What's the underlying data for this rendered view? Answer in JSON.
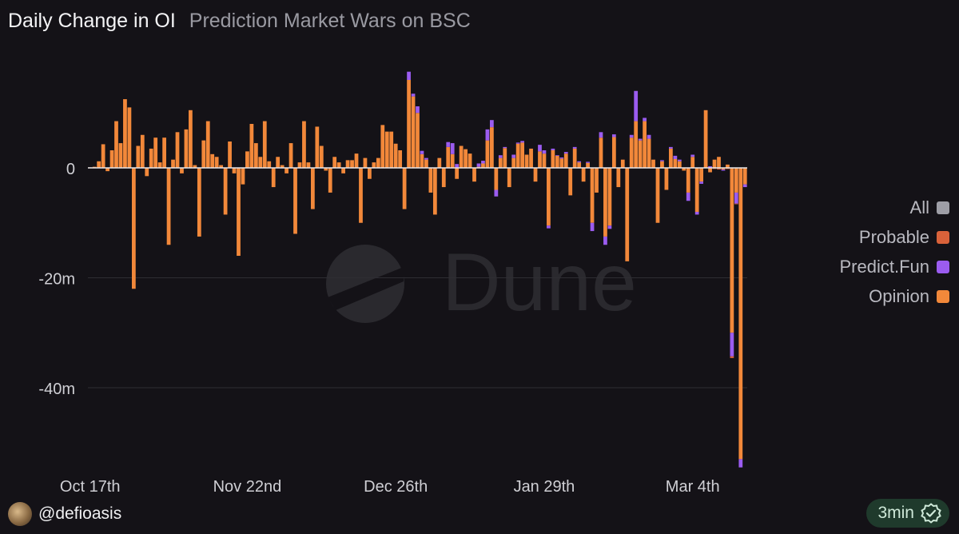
{
  "header": {
    "title": "Daily Change in OI",
    "subtitle": "Prediction Market Wars on BSC"
  },
  "footer": {
    "username": "@defioasis",
    "refresh_label": "3min",
    "avatar_icon": "avatar-icon",
    "refresh_icon": "verified-check-icon"
  },
  "colors": {
    "All": "#9e9ea6",
    "Probable": "#d9623a",
    "Predict.Fun": "#9b5cf0",
    "Opinion": "#f2883a",
    "grid": "#2e2d33",
    "axis_text": "#cfcfd4",
    "zero_line": "#e6e6ea"
  },
  "chart_data": {
    "type": "bar",
    "stacked": true,
    "title": "Daily Change in OI",
    "ylabel": "",
    "xlabel": "",
    "y_ticks": [
      0,
      -20,
      -40
    ],
    "y_tick_labels": [
      "0",
      "-20m",
      "-40m"
    ],
    "ylim": [
      -55,
      18
    ],
    "x_start": "2025-10-17",
    "x_ticks": [
      "2025-10-17",
      "2025-11-22",
      "2025-12-26",
      "2026-01-29",
      "2026-03-04"
    ],
    "x_tick_labels": [
      "Oct 17th",
      "Nov 22nd",
      "Dec 26th",
      "Jan 29th",
      "Mar 4th"
    ],
    "legend": [
      "All",
      "Probable",
      "Predict.Fun",
      "Opinion"
    ],
    "legend_position": "right",
    "grid": true,
    "watermark": "Dune",
    "series": [
      {
        "name": "Opinion",
        "values": [
          0.1,
          0.2,
          1.2,
          4.3,
          -0.6,
          3.2,
          8.5,
          4.5,
          12.5,
          11,
          -22,
          4,
          6,
          -1.5,
          3.5,
          5.5,
          1,
          5.5,
          -14,
          1.5,
          6.5,
          -1,
          7,
          10.5,
          0.5,
          -12.5,
          5,
          8.5,
          2.5,
          2,
          0.5,
          -8.5,
          4.8,
          -1,
          -16,
          -3,
          3,
          8,
          4.5,
          2,
          8.5,
          1.2,
          -3.5,
          2,
          0.5,
          -1,
          4.5,
          -12,
          1,
          8.5,
          1,
          -7.5,
          7.5,
          4,
          -0.5,
          -4.5,
          2,
          1,
          -1,
          1.4,
          1.4,
          2.6,
          -10,
          1.8,
          -2,
          1,
          1.8,
          7.8,
          6.6,
          6.6,
          4.4,
          3.2,
          -7.5,
          16,
          13,
          10,
          2.5,
          1.5,
          -4.5,
          -8.5,
          1.8,
          -3.5,
          3.8,
          2.5,
          -2,
          4,
          3.4,
          2.6,
          -2.5,
          0.2,
          0.8,
          5,
          7.4,
          -4,
          1.8,
          3.6,
          -3.5,
          1.8,
          4.4,
          4.6,
          2.4,
          3.5,
          -2.5,
          3,
          2.6,
          -10.5,
          3.2,
          2.2,
          1.7,
          2.6,
          -5,
          3.5,
          1,
          -2.5,
          0.9,
          -10,
          -4.5,
          5.5,
          -12.5,
          -10.5,
          5.6,
          -3.5,
          1.5,
          -17,
          5.5,
          8.5,
          5,
          8.5,
          5.3,
          1.5,
          -10,
          1.2,
          -4,
          3.5,
          1.6,
          1.2,
          -0.5,
          -4.5,
          2,
          -8,
          -2.5,
          10.5,
          -0.8,
          1.5,
          2,
          -0.3,
          0.6,
          -30,
          -4.5,
          -53,
          -3
        ],
        "hidden": false
      },
      {
        "name": "Predict.Fun",
        "values": [
          0,
          0,
          0,
          0,
          0,
          0,
          0,
          0,
          0,
          0,
          0,
          0,
          0,
          0,
          0,
          0,
          0,
          0,
          0,
          0,
          0,
          0,
          0,
          0,
          0,
          0,
          0,
          0,
          0,
          0,
          0,
          0,
          0,
          0,
          0,
          0,
          0,
          0,
          0,
          0,
          0,
          0,
          0,
          0,
          0,
          0,
          0,
          0,
          0,
          0,
          0,
          0,
          0,
          0,
          0,
          0,
          0,
          0,
          0,
          0,
          0,
          0,
          0,
          0,
          0,
          0,
          0,
          0,
          0,
          0,
          0,
          0,
          0,
          1.5,
          0.5,
          1.2,
          0.6,
          0.3,
          0,
          0,
          0,
          0,
          0.9,
          2,
          0.7,
          0,
          0,
          0,
          0,
          0.6,
          0.5,
          2,
          1.3,
          -1.2,
          0.5,
          0.2,
          0,
          0.6,
          0.2,
          0.3,
          0,
          0,
          0,
          1.2,
          0.6,
          -0.5,
          0.3,
          0.1,
          0.2,
          0.3,
          0,
          0.3,
          0.2,
          0,
          0.2,
          -1.5,
          0,
          1,
          -1.5,
          -0.6,
          0.5,
          0,
          0,
          0,
          0.5,
          5.5,
          0.3,
          0.6,
          0.7,
          0,
          0,
          0.2,
          0,
          0.3,
          0.6,
          0.3,
          0,
          -1.5,
          0.4,
          -0.5,
          -0.4,
          0,
          0.3,
          0,
          0,
          -0.2,
          0,
          -4.3,
          -2,
          -1.5,
          -0.5
        ]
      },
      {
        "name": "Probable",
        "values": [
          0,
          0,
          0,
          0,
          0,
          0,
          0,
          0,
          0,
          0,
          0,
          0,
          0,
          0,
          0,
          0,
          0,
          0,
          0,
          0,
          0,
          0,
          0,
          0,
          0,
          0,
          0,
          0,
          0,
          0,
          0,
          0,
          0,
          0,
          0,
          0,
          0,
          0,
          0,
          0,
          0,
          0,
          0,
          0,
          0,
          0,
          0,
          0,
          0,
          0,
          0,
          0,
          0,
          0,
          0,
          0,
          0,
          0,
          0,
          0,
          0,
          0,
          0,
          0,
          0,
          0,
          0,
          0,
          0,
          0,
          0,
          0,
          0,
          0,
          0,
          0,
          0,
          0,
          0,
          0,
          0,
          0,
          0,
          0,
          0,
          0,
          0,
          0,
          0,
          0,
          0,
          0,
          0,
          0,
          0,
          0,
          0,
          0,
          0,
          0,
          0,
          0,
          0,
          0,
          0,
          0,
          0,
          0,
          0,
          0,
          0,
          0,
          0,
          0,
          0,
          0,
          0,
          0,
          0,
          0,
          0,
          0,
          0,
          0,
          0,
          0,
          0,
          0,
          0,
          0,
          0,
          0,
          0,
          0,
          0,
          0,
          0,
          0,
          0,
          0,
          0,
          0,
          0,
          -0.2,
          -0.3,
          0,
          -0.2,
          -0.3,
          -0.1
        ]
      }
    ]
  }
}
